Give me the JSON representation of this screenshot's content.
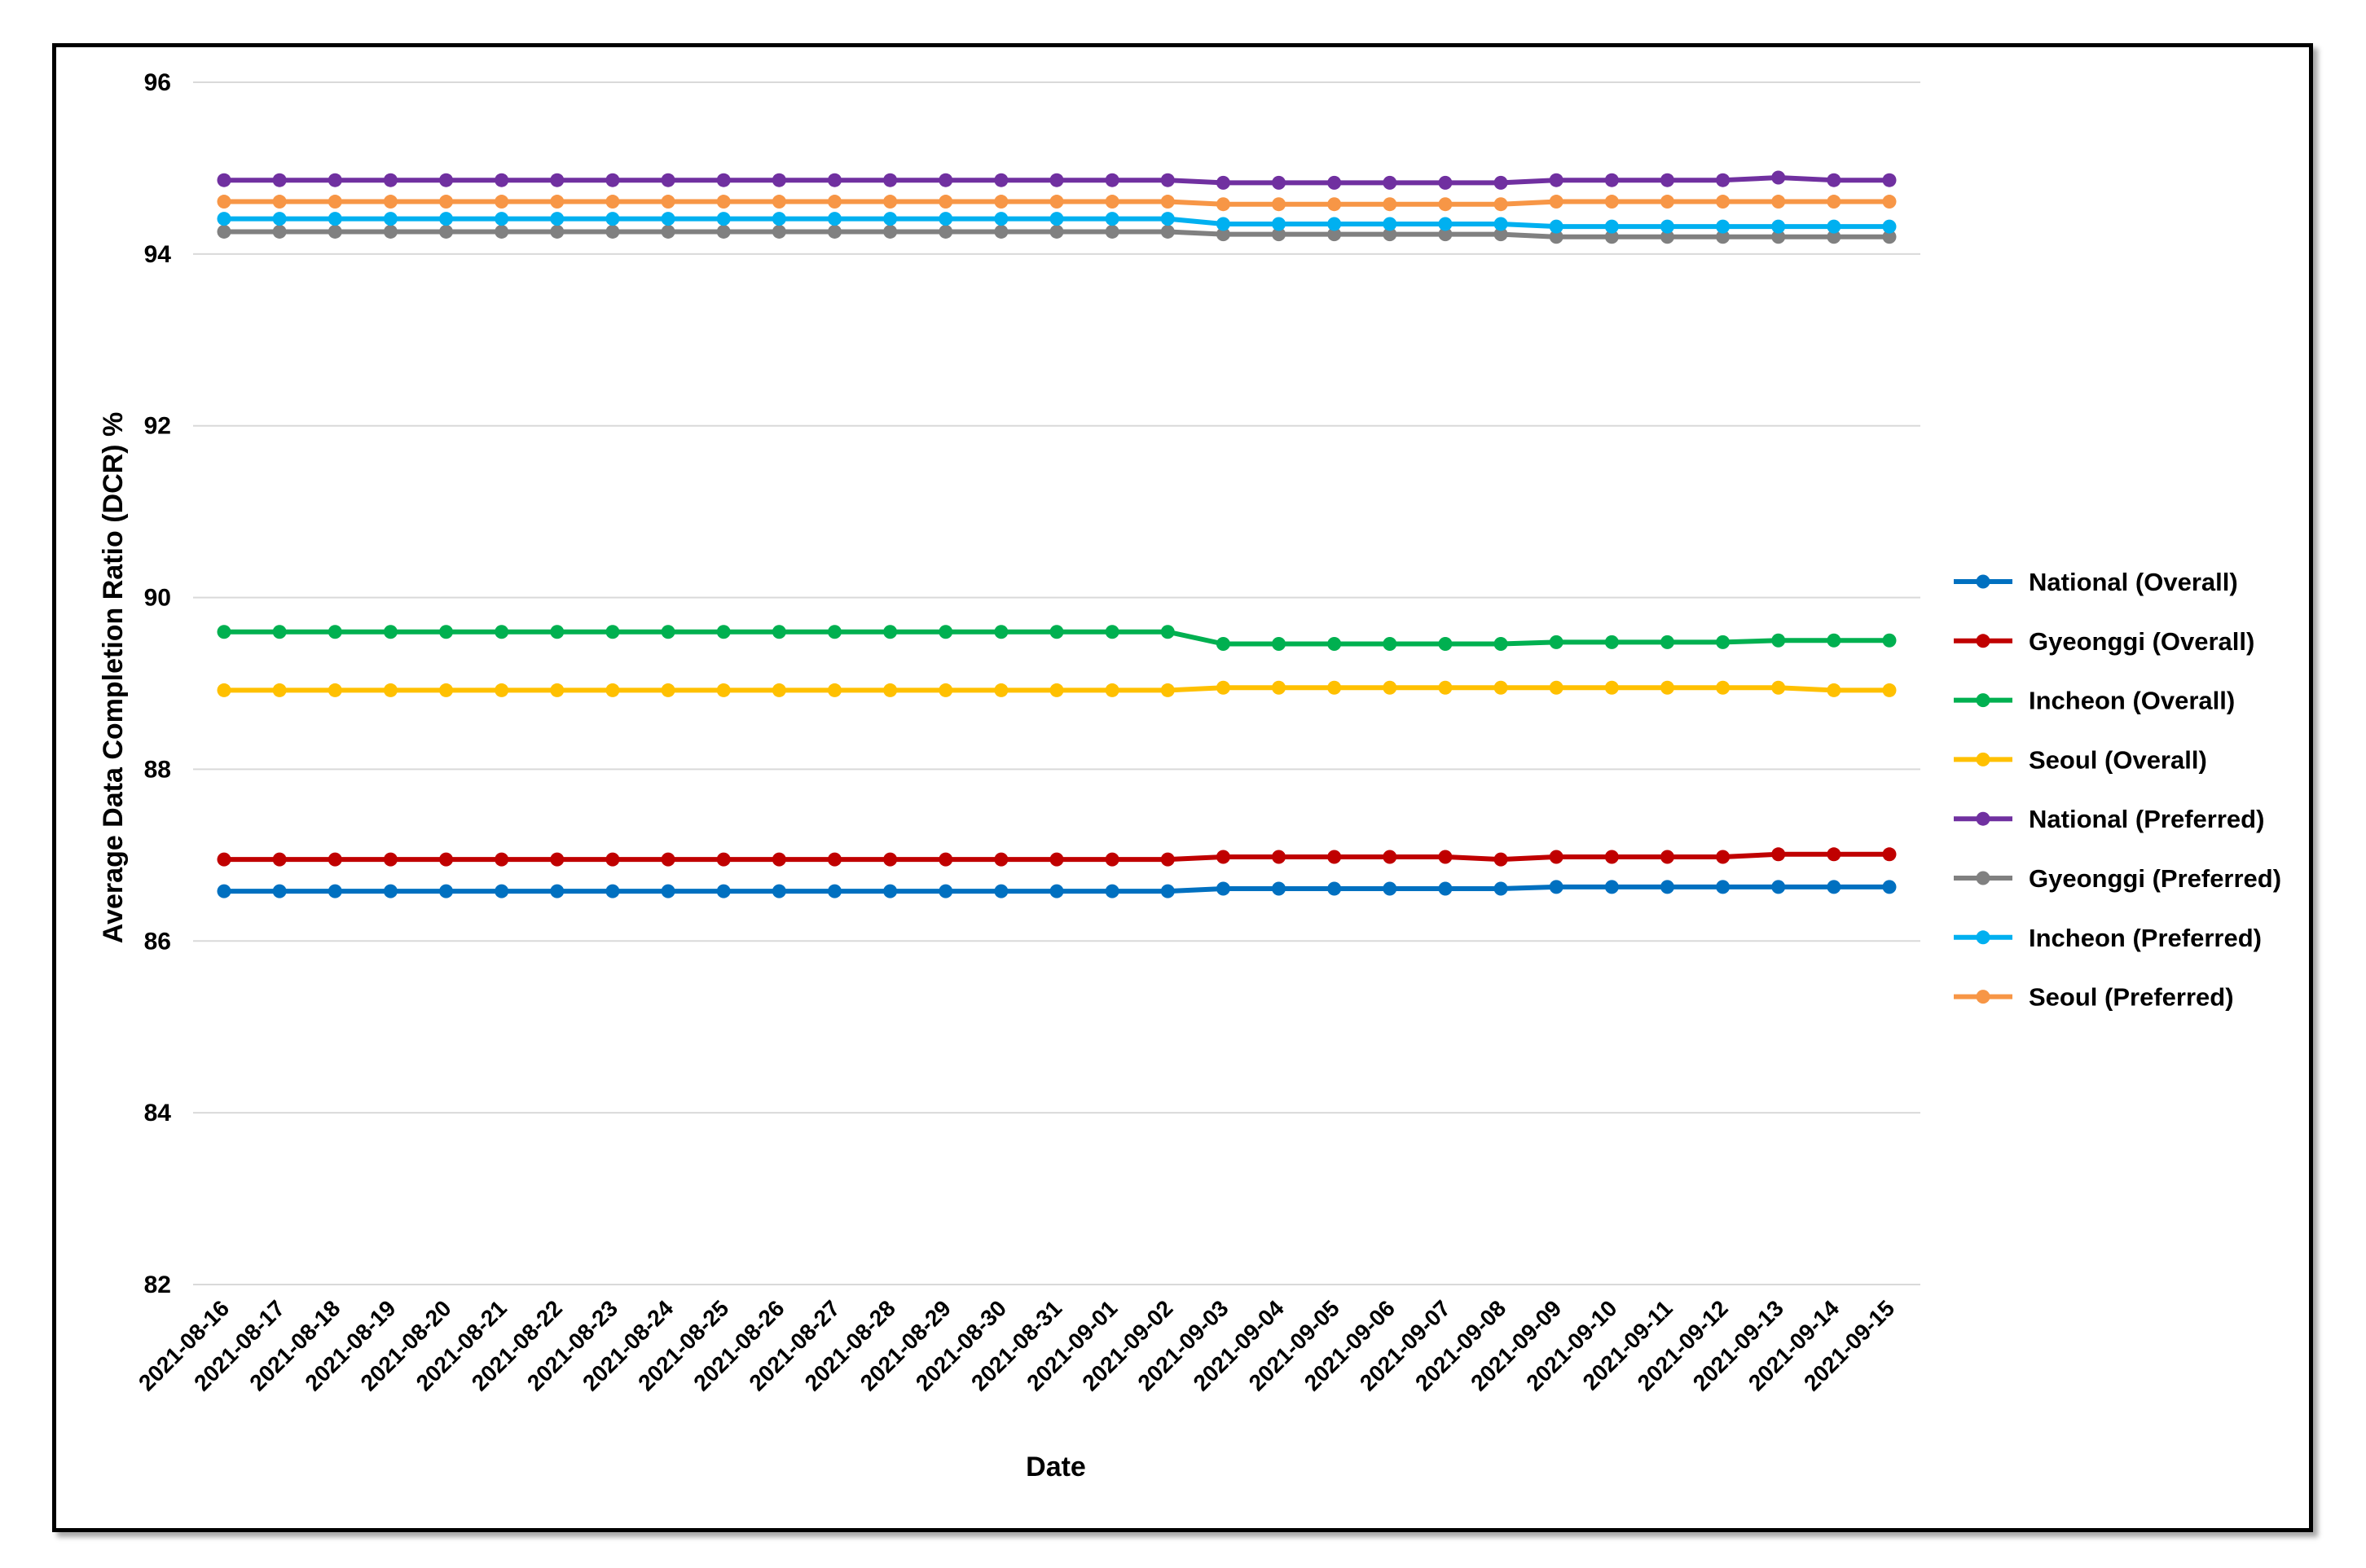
{
  "chart_data": {
    "type": "line",
    "title": "",
    "xlabel": "Date",
    "ylabel": "Average Data Completion Ratio (DCR) %",
    "ylim": [
      82,
      96
    ],
    "yticks": [
      82,
      84,
      86,
      88,
      90,
      92,
      94,
      96
    ],
    "grid": "horizontal",
    "legend_position": "right",
    "x": [
      "2021-08-16",
      "2021-08-17",
      "2021-08-18",
      "2021-08-19",
      "2021-08-20",
      "2021-08-21",
      "2021-08-22",
      "2021-08-23",
      "2021-08-24",
      "2021-08-25",
      "2021-08-26",
      "2021-08-27",
      "2021-08-28",
      "2021-08-29",
      "2021-08-30",
      "2021-08-31",
      "2021-09-01",
      "2021-09-02",
      "2021-09-03",
      "2021-09-04",
      "2021-09-05",
      "2021-09-06",
      "2021-09-07",
      "2021-09-08",
      "2021-09-09",
      "2021-09-10",
      "2021-09-11",
      "2021-09-12",
      "2021-09-13",
      "2021-09-14",
      "2021-09-15"
    ],
    "series": [
      {
        "name": "National (Overall)",
        "color": "#0070C0",
        "values": [
          86.58,
          86.58,
          86.58,
          86.58,
          86.58,
          86.58,
          86.58,
          86.58,
          86.58,
          86.58,
          86.58,
          86.58,
          86.58,
          86.58,
          86.58,
          86.58,
          86.58,
          86.58,
          86.61,
          86.61,
          86.61,
          86.61,
          86.61,
          86.61,
          86.63,
          86.63,
          86.63,
          86.63,
          86.63,
          86.63,
          86.63
        ]
      },
      {
        "name": "Gyeonggi (Overall)",
        "color": "#C00000",
        "values": [
          86.95,
          86.95,
          86.95,
          86.95,
          86.95,
          86.95,
          86.95,
          86.95,
          86.95,
          86.95,
          86.95,
          86.95,
          86.95,
          86.95,
          86.95,
          86.95,
          86.95,
          86.95,
          86.98,
          86.98,
          86.98,
          86.98,
          86.98,
          86.95,
          86.98,
          86.98,
          86.98,
          86.98,
          87.01,
          87.01,
          87.01
        ]
      },
      {
        "name": "Incheon (Overall)",
        "color": "#00B050",
        "values": [
          89.6,
          89.6,
          89.6,
          89.6,
          89.6,
          89.6,
          89.6,
          89.6,
          89.6,
          89.6,
          89.6,
          89.6,
          89.6,
          89.6,
          89.6,
          89.6,
          89.6,
          89.6,
          89.46,
          89.46,
          89.46,
          89.46,
          89.46,
          89.46,
          89.48,
          89.48,
          89.48,
          89.48,
          89.5,
          89.5,
          89.5
        ]
      },
      {
        "name": "Seoul (Overall)",
        "color": "#FFC000",
        "values": [
          88.92,
          88.92,
          88.92,
          88.92,
          88.92,
          88.92,
          88.92,
          88.92,
          88.92,
          88.92,
          88.92,
          88.92,
          88.92,
          88.92,
          88.92,
          88.92,
          88.92,
          88.92,
          88.95,
          88.95,
          88.95,
          88.95,
          88.95,
          88.95,
          88.95,
          88.95,
          88.95,
          88.95,
          88.95,
          88.92,
          88.92
        ]
      },
      {
        "name": "National (Preferred)",
        "color": "#7030A0",
        "values": [
          94.86,
          94.86,
          94.86,
          94.86,
          94.86,
          94.86,
          94.86,
          94.86,
          94.86,
          94.86,
          94.86,
          94.86,
          94.86,
          94.86,
          94.86,
          94.86,
          94.86,
          94.86,
          94.83,
          94.83,
          94.83,
          94.83,
          94.83,
          94.83,
          94.86,
          94.86,
          94.86,
          94.86,
          94.89,
          94.86,
          94.86
        ]
      },
      {
        "name": "Gyeonggi (Preferred)",
        "color": "#808080",
        "values": [
          94.26,
          94.26,
          94.26,
          94.26,
          94.26,
          94.26,
          94.26,
          94.26,
          94.26,
          94.26,
          94.26,
          94.26,
          94.26,
          94.26,
          94.26,
          94.26,
          94.26,
          94.26,
          94.23,
          94.23,
          94.23,
          94.23,
          94.23,
          94.23,
          94.2,
          94.2,
          94.2,
          94.2,
          94.2,
          94.2,
          94.2
        ]
      },
      {
        "name": "Incheon (Preferred)",
        "color": "#00B0F0",
        "values": [
          94.41,
          94.41,
          94.41,
          94.41,
          94.41,
          94.41,
          94.41,
          94.41,
          94.41,
          94.41,
          94.41,
          94.41,
          94.41,
          94.41,
          94.41,
          94.41,
          94.41,
          94.41,
          94.35,
          94.35,
          94.35,
          94.35,
          94.35,
          94.35,
          94.32,
          94.32,
          94.32,
          94.32,
          94.32,
          94.32,
          94.32
        ]
      },
      {
        "name": "Seoul (Preferred)",
        "color": "#F79646",
        "values": [
          94.61,
          94.61,
          94.61,
          94.61,
          94.61,
          94.61,
          94.61,
          94.61,
          94.61,
          94.61,
          94.61,
          94.61,
          94.61,
          94.61,
          94.61,
          94.61,
          94.61,
          94.61,
          94.58,
          94.58,
          94.58,
          94.58,
          94.58,
          94.58,
          94.61,
          94.61,
          94.61,
          94.61,
          94.61,
          94.61,
          94.61
        ]
      }
    ]
  }
}
